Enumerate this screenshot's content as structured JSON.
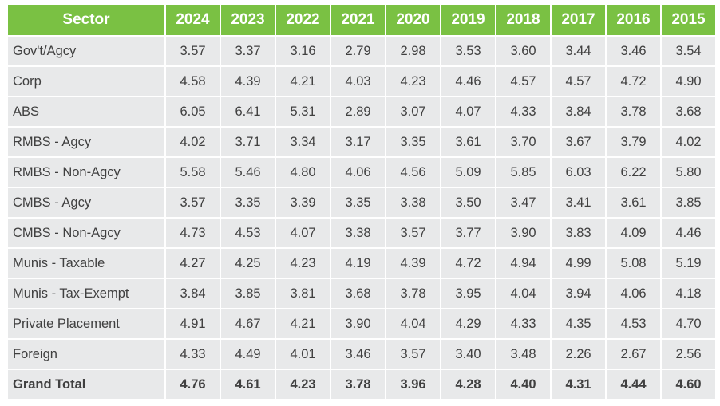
{
  "chart_data": {
    "type": "table",
    "header": [
      "Sector",
      "2024",
      "2023",
      "2022",
      "2021",
      "2020",
      "2019",
      "2018",
      "2017",
      "2016",
      "2015"
    ],
    "rows": [
      [
        "Gov't/Agcy",
        "3.57",
        "3.37",
        "3.16",
        "2.79",
        "2.98",
        "3.53",
        "3.60",
        "3.44",
        "3.46",
        "3.54"
      ],
      [
        "Corp",
        "4.58",
        "4.39",
        "4.21",
        "4.03",
        "4.23",
        "4.46",
        "4.57",
        "4.57",
        "4.72",
        "4.90"
      ],
      [
        "ABS",
        "6.05",
        "6.41",
        "5.31",
        "2.89",
        "3.07",
        "4.07",
        "4.33",
        "3.84",
        "3.78",
        "3.68"
      ],
      [
        "RMBS - Agcy",
        "4.02",
        "3.71",
        "3.34",
        "3.17",
        "3.35",
        "3.61",
        "3.70",
        "3.67",
        "3.79",
        "4.02"
      ],
      [
        "RMBS - Non-Agcy",
        "5.58",
        "5.46",
        "4.80",
        "4.06",
        "4.56",
        "5.09",
        "5.85",
        "6.03",
        "6.22",
        "5.80"
      ],
      [
        "CMBS - Agcy",
        "3.57",
        "3.35",
        "3.39",
        "3.35",
        "3.38",
        "3.50",
        "3.47",
        "3.41",
        "3.61",
        "3.85"
      ],
      [
        "CMBS - Non-Agcy",
        "4.73",
        "4.53",
        "4.07",
        "3.38",
        "3.57",
        "3.77",
        "3.90",
        "3.83",
        "4.09",
        "4.46"
      ],
      [
        "Munis - Taxable",
        "4.27",
        "4.25",
        "4.23",
        "4.19",
        "4.39",
        "4.72",
        "4.94",
        "4.99",
        "5.08",
        "5.19"
      ],
      [
        "Munis - Tax-Exempt",
        "3.84",
        "3.85",
        "3.81",
        "3.68",
        "3.78",
        "3.95",
        "4.04",
        "3.94",
        "4.06",
        "4.18"
      ],
      [
        "Private Placement",
        "4.91",
        "4.67",
        "4.21",
        "3.90",
        "4.04",
        "4.29",
        "4.33",
        "4.35",
        "4.53",
        "4.70"
      ],
      [
        "Foreign",
        "4.33",
        "4.49",
        "4.01",
        "3.46",
        "3.57",
        "3.40",
        "3.48",
        "2.26",
        "2.67",
        "2.56"
      ],
      [
        "Grand Total",
        "4.76",
        "4.61",
        "4.23",
        "3.78",
        "3.96",
        "4.28",
        "4.40",
        "4.31",
        "4.44",
        "4.60"
      ]
    ],
    "total_row_index": 11
  },
  "colors": {
    "header_bg": "#7ac143",
    "header_text": "#ffffff",
    "cell_bg": "#e8e9ea",
    "cell_text": "#404040"
  }
}
